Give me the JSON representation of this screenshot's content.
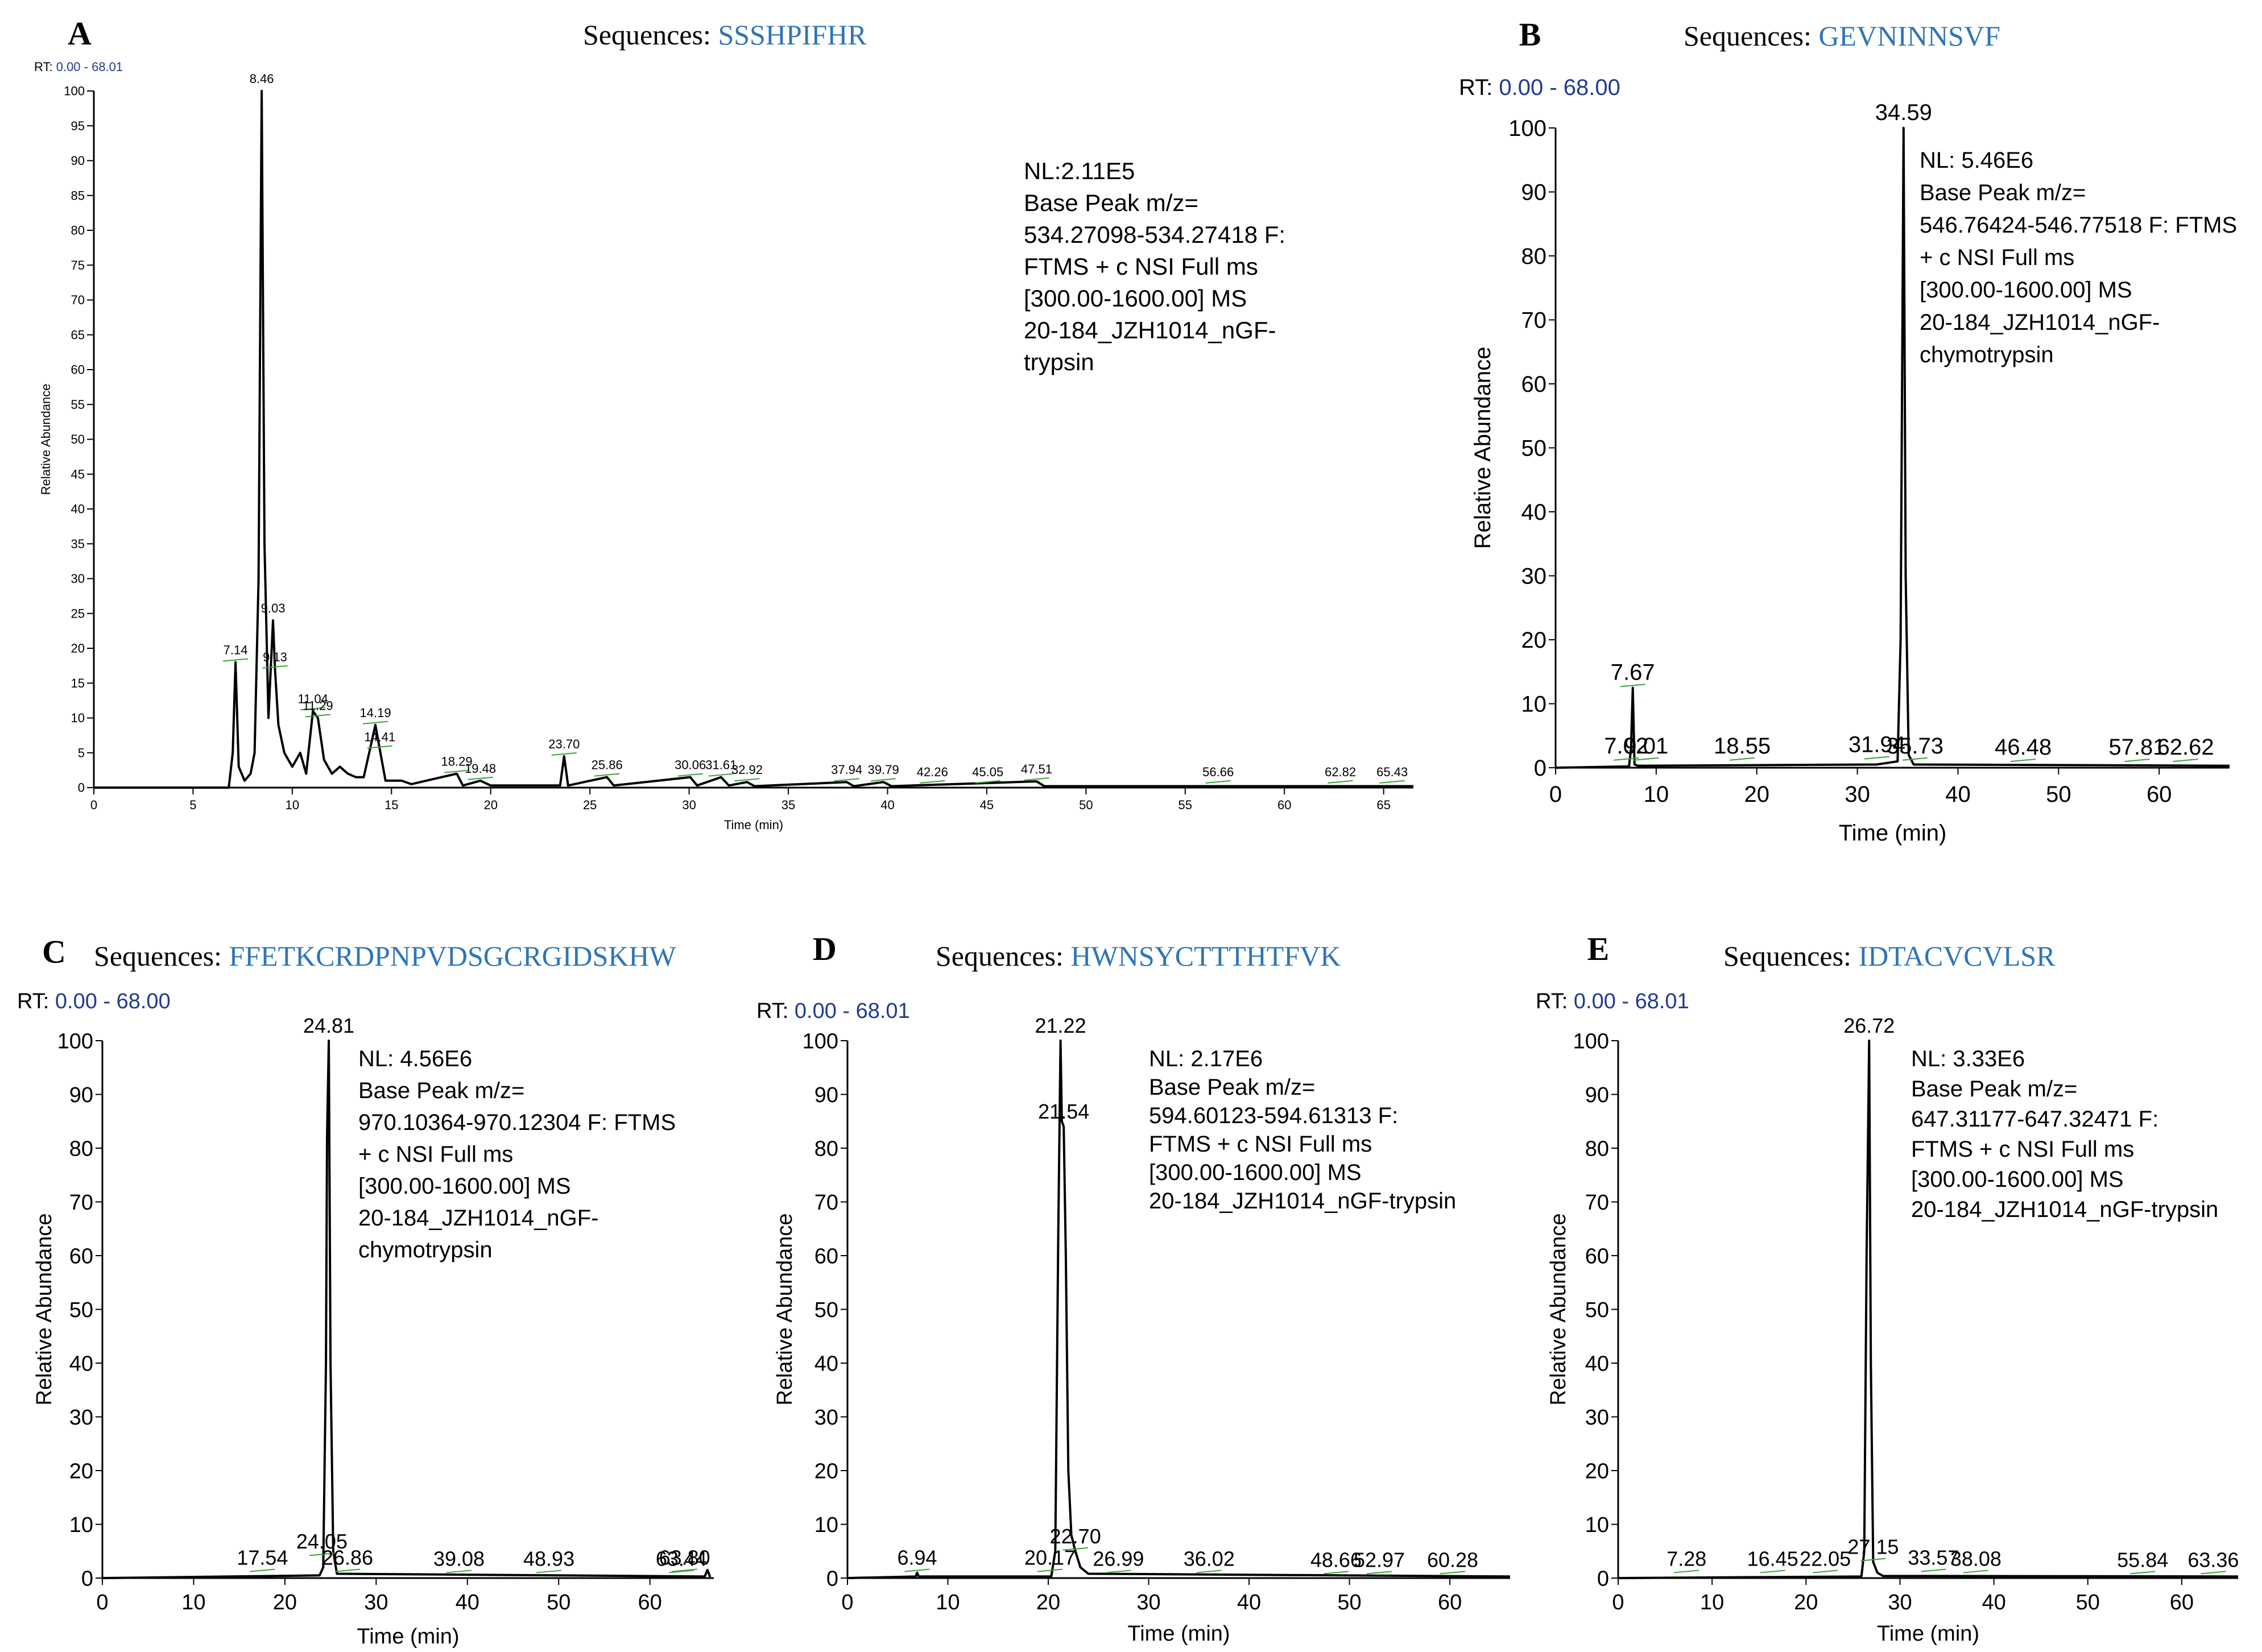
{
  "figure": {
    "seq_prefix": "Sequences:",
    "axis_xlabel": "Time (min)",
    "axis_ylabel": "Relative Abundance"
  },
  "colors": {
    "trace": "#000000",
    "sequence": "#2e75b6",
    "rt": "#1f3a93",
    "baseline": "#3aa335"
  },
  "chart_data": [
    {
      "type": "line",
      "panel": "A",
      "sequence": "SSSHPIFHR",
      "rt_label": "RT:",
      "rt_range": "0.00 - 68.01",
      "info": [
        "NL:2.11E5",
        "Base Peak m/z=",
        "534.27098-534.27418 F:",
        "FTMS + c NSI Full ms",
        "[300.00-1600.00] MS",
        "20-184_JZH1014_nGF-",
        "trypsin"
      ],
      "xlabel": "Time (min)",
      "ylabel": "Relative Abundance",
      "xlim": [
        0,
        66.5
      ],
      "ylim": [
        0,
        100
      ],
      "xticks": [
        0,
        5,
        10,
        15,
        20,
        25,
        30,
        35,
        40,
        45,
        50,
        55,
        60,
        65
      ],
      "yticks": [
        0,
        5,
        10,
        15,
        20,
        25,
        30,
        35,
        40,
        45,
        50,
        55,
        60,
        65,
        70,
        75,
        80,
        85,
        90,
        95,
        100
      ],
      "peaks": [
        {
          "label": "8.46",
          "x": 8.46,
          "y": 100
        },
        {
          "label": "7.14",
          "x": 7.14,
          "y": 18
        },
        {
          "label": "9.03",
          "x": 9.03,
          "y": 24
        },
        {
          "label": "9.13",
          "x": 9.13,
          "y": 17
        },
        {
          "label": "11.04",
          "x": 11.04,
          "y": 11
        },
        {
          "label": "11.29",
          "x": 11.29,
          "y": 10
        },
        {
          "label": "14.19",
          "x": 14.19,
          "y": 9
        },
        {
          "label": "14.41",
          "x": 14.41,
          "y": 5.5
        },
        {
          "label": "18.29",
          "x": 18.29,
          "y": 2
        },
        {
          "label": "19.48",
          "x": 19.48,
          "y": 1
        },
        {
          "label": "23.70",
          "x": 23.7,
          "y": 4.5
        },
        {
          "label": "25.86",
          "x": 25.86,
          "y": 1.5
        },
        {
          "label": "30.06",
          "x": 30.06,
          "y": 1.5
        },
        {
          "label": "31.61",
          "x": 31.61,
          "y": 1.5
        },
        {
          "label": "32.92",
          "x": 32.92,
          "y": 0.8
        },
        {
          "label": "37.94",
          "x": 37.94,
          "y": 0.8
        },
        {
          "label": "39.79",
          "x": 39.79,
          "y": 0.8
        },
        {
          "label": "42.26",
          "x": 42.26,
          "y": 0.5
        },
        {
          "label": "45.05",
          "x": 45.05,
          "y": 0.5
        },
        {
          "label": "47.51",
          "x": 47.51,
          "y": 0.9
        },
        {
          "label": "56.66",
          "x": 56.66,
          "y": 0.5
        },
        {
          "label": "62.82",
          "x": 62.82,
          "y": 0.5
        },
        {
          "label": "65.43",
          "x": 65.43,
          "y": 0.5
        }
      ],
      "trace": [
        [
          0,
          0
        ],
        [
          5,
          0
        ],
        [
          6.8,
          0
        ],
        [
          7.0,
          5
        ],
        [
          7.14,
          18
        ],
        [
          7.3,
          3
        ],
        [
          7.6,
          1
        ],
        [
          7.9,
          2
        ],
        [
          8.1,
          5
        ],
        [
          8.3,
          30
        ],
        [
          8.46,
          100
        ],
        [
          8.6,
          35
        ],
        [
          8.8,
          10
        ],
        [
          9.03,
          24
        ],
        [
          9.13,
          17
        ],
        [
          9.3,
          9
        ],
        [
          9.6,
          5
        ],
        [
          10.0,
          3
        ],
        [
          10.4,
          5
        ],
        [
          10.7,
          2
        ],
        [
          11.04,
          11
        ],
        [
          11.29,
          10
        ],
        [
          11.6,
          4
        ],
        [
          12.0,
          2
        ],
        [
          12.4,
          3
        ],
        [
          12.8,
          2
        ],
        [
          13.2,
          1.5
        ],
        [
          13.6,
          1.5
        ],
        [
          14.19,
          9
        ],
        [
          14.41,
          5.5
        ],
        [
          14.7,
          1
        ],
        [
          15.5,
          1
        ],
        [
          16.0,
          0.5
        ],
        [
          18.29,
          2
        ],
        [
          18.6,
          0.3
        ],
        [
          19.48,
          1
        ],
        [
          20,
          0.3
        ],
        [
          23.5,
          0.3
        ],
        [
          23.7,
          4.5
        ],
        [
          23.9,
          0.3
        ],
        [
          25.86,
          1.5
        ],
        [
          26.2,
          0.3
        ],
        [
          30.06,
          1.5
        ],
        [
          30.4,
          0.3
        ],
        [
          31.61,
          1.5
        ],
        [
          32,
          0.3
        ],
        [
          32.92,
          0.8
        ],
        [
          33.3,
          0.2
        ],
        [
          37.94,
          0.8
        ],
        [
          38.3,
          0.2
        ],
        [
          39.79,
          0.8
        ],
        [
          40.2,
          0.2
        ],
        [
          47.51,
          0.9
        ],
        [
          47.9,
          0.2
        ],
        [
          66.5,
          0.2
        ]
      ]
    },
    {
      "type": "line",
      "panel": "B",
      "sequence": "GEVNINNSVF",
      "rt_label": "RT:",
      "rt_range": "0.00 - 68.00",
      "info": [
        "NL: 5.46E6",
        "Base Peak m/z=",
        "546.76424-546.77518 F: FTMS",
        "+ c NSI Full ms",
        "[300.00-1600.00]  MS",
        "20-184_JZH1014_nGF-",
        "chymotrypsin"
      ],
      "xlabel": "Time (min)",
      "ylabel": "Relative Abundance",
      "xlim": [
        0,
        67
      ],
      "ylim": [
        0,
        100
      ],
      "xticks": [
        0,
        10,
        20,
        30,
        40,
        50,
        60
      ],
      "yticks": [
        0,
        10,
        20,
        30,
        40,
        50,
        60,
        70,
        80,
        90,
        100
      ],
      "peaks": [
        {
          "label": "34.59",
          "x": 34.59,
          "y": 100
        },
        {
          "label": "7.67",
          "x": 7.67,
          "y": 12.5
        },
        {
          "label": "7.02",
          "x": 7.02,
          "y": 1
        },
        {
          "label": "9.01",
          "x": 9.01,
          "y": 1
        },
        {
          "label": "18.55",
          "x": 18.55,
          "y": 1
        },
        {
          "label": "31.94",
          "x": 31.94,
          "y": 1.2
        },
        {
          "label": "35.73",
          "x": 35.73,
          "y": 1
        },
        {
          "label": "46.48",
          "x": 46.48,
          "y": 0.8
        },
        {
          "label": "57.81",
          "x": 57.81,
          "y": 0.8
        },
        {
          "label": "62.62",
          "x": 62.62,
          "y": 0.8
        }
      ],
      "trace": [
        [
          0,
          0
        ],
        [
          7.3,
          0.2
        ],
        [
          7.5,
          3
        ],
        [
          7.67,
          12.5
        ],
        [
          7.85,
          0.5
        ],
        [
          8.2,
          0.3
        ],
        [
          31.9,
          0.5
        ],
        [
          34.0,
          1
        ],
        [
          34.3,
          20
        ],
        [
          34.59,
          100
        ],
        [
          34.8,
          30
        ],
        [
          35.1,
          2
        ],
        [
          35.6,
          0.5
        ],
        [
          67,
          0.3
        ]
      ]
    },
    {
      "type": "line",
      "panel": "C",
      "sequence": "FFETKCRDPNPVDSGCRGIDSKHW",
      "rt_label": "RT:",
      "rt_range": "0.00 - 68.00",
      "info": [
        "NL: 4.56E6",
        "Base Peak m/z=",
        "970.10364-970.12304 F: FTMS",
        "+ c NSI Full ms",
        "[300.00-1600.00]  MS",
        "20-184_JZH1014_nGF-",
        "chymotrypsin"
      ],
      "xlabel": "Time (min)",
      "ylabel": "Relative Abundance",
      "xlim": [
        0,
        67
      ],
      "ylim": [
        0,
        100
      ],
      "xticks": [
        0,
        10,
        20,
        30,
        40,
        50,
        60
      ],
      "yticks": [
        0,
        10,
        20,
        30,
        40,
        50,
        60,
        70,
        80,
        90,
        100
      ],
      "peaks": [
        {
          "label": "24.81",
          "x": 24.81,
          "y": 100
        },
        {
          "label": "17.54",
          "x": 17.54,
          "y": 1
        },
        {
          "label": "24.05",
          "x": 24.05,
          "y": 4
        },
        {
          "label": "26.86",
          "x": 26.86,
          "y": 1
        },
        {
          "label": "39.08",
          "x": 39.08,
          "y": 0.8
        },
        {
          "label": "48.93",
          "x": 48.93,
          "y": 0.8
        },
        {
          "label": "63.44",
          "x": 63.44,
          "y": 0.8
        },
        {
          "label": "63.80",
          "x": 63.8,
          "y": 1
        }
      ],
      "trace": [
        [
          0,
          0
        ],
        [
          23.8,
          0.5
        ],
        [
          24.2,
          2
        ],
        [
          24.5,
          40
        ],
        [
          24.62,
          82
        ],
        [
          24.81,
          100
        ],
        [
          25.0,
          40
        ],
        [
          25.3,
          5
        ],
        [
          25.7,
          0.8
        ],
        [
          66,
          0.3
        ],
        [
          66.3,
          1.5
        ],
        [
          66.6,
          0.2
        ]
      ]
    },
    {
      "type": "line",
      "panel": "D",
      "sequence": "HWNSYCTTTHTFVK",
      "rt_label": "RT:",
      "rt_range": "0.00 - 68.01",
      "info": [
        "NL: 2.17E6",
        "Base Peak m/z=",
        "594.60123-594.61313 F:",
        "FTMS + c NSI Full ms",
        "[300.00-1600.00]  MS",
        "20-184_JZH1014_nGF-trypsin"
      ],
      "xlabel": "Time (min)",
      "ylabel": "Relative Abundance",
      "xlim": [
        0,
        66
      ],
      "ylim": [
        0,
        100
      ],
      "xticks": [
        0,
        10,
        20,
        30,
        40,
        50,
        60
      ],
      "yticks": [
        0,
        10,
        20,
        30,
        40,
        50,
        60,
        70,
        80,
        90,
        100
      ],
      "peaks": [
        {
          "label": "21.22",
          "x": 21.22,
          "y": 100
        },
        {
          "label": "21.54",
          "x": 21.54,
          "y": 84
        },
        {
          "label": "22.70",
          "x": 22.7,
          "y": 5
        },
        {
          "label": "6.94",
          "x": 6.94,
          "y": 1
        },
        {
          "label": "20.17",
          "x": 20.17,
          "y": 1
        },
        {
          "label": "26.99",
          "x": 26.99,
          "y": 0.8
        },
        {
          "label": "36.02",
          "x": 36.02,
          "y": 0.8
        },
        {
          "label": "48.66",
          "x": 48.66,
          "y": 0.6
        },
        {
          "label": "52.97",
          "x": 52.97,
          "y": 0.6
        },
        {
          "label": "60.28",
          "x": 60.28,
          "y": 0.6
        }
      ],
      "trace": [
        [
          0,
          0
        ],
        [
          6.8,
          0.3
        ],
        [
          6.94,
          1
        ],
        [
          7.1,
          0.3
        ],
        [
          20.3,
          0.3
        ],
        [
          20.7,
          5
        ],
        [
          21.0,
          65
        ],
        [
          21.22,
          100
        ],
        [
          21.35,
          85
        ],
        [
          21.54,
          84
        ],
        [
          21.75,
          60
        ],
        [
          22.0,
          20
        ],
        [
          22.3,
          8
        ],
        [
          22.7,
          5
        ],
        [
          23.2,
          2
        ],
        [
          24,
          0.8
        ],
        [
          66,
          0.3
        ]
      ]
    },
    {
      "type": "line",
      "panel": "E",
      "sequence": "IDTACVCVLSR",
      "rt_label": "RT:",
      "rt_range": "0.00 - 68.01",
      "info": [
        "NL: 3.33E6",
        "Base Peak m/z=",
        "647.31177-647.32471 F:",
        "FTMS + c NSI Full ms",
        "[300.00-1600.00]  MS",
        "20-184_JZH1014_nGF-trypsin"
      ],
      "xlabel": "Time (min)",
      "ylabel": "Relative Abundance",
      "xlim": [
        0,
        66
      ],
      "ylim": [
        0,
        100
      ],
      "xticks": [
        0,
        10,
        20,
        30,
        40,
        50,
        60
      ],
      "yticks": [
        0,
        10,
        20,
        30,
        40,
        50,
        60,
        70,
        80,
        90,
        100
      ],
      "peaks": [
        {
          "label": "26.72",
          "x": 26.72,
          "y": 100
        },
        {
          "label": "7.28",
          "x": 7.28,
          "y": 0.8
        },
        {
          "label": "16.45",
          "x": 16.45,
          "y": 0.8
        },
        {
          "label": "22.05",
          "x": 22.05,
          "y": 0.8
        },
        {
          "label": "27.15",
          "x": 27.15,
          "y": 3
        },
        {
          "label": "33.57",
          "x": 33.57,
          "y": 1
        },
        {
          "label": "38.08",
          "x": 38.08,
          "y": 0.8
        },
        {
          "label": "55.84",
          "x": 55.84,
          "y": 0.6
        },
        {
          "label": "63.36",
          "x": 63.36,
          "y": 0.6
        }
      ],
      "trace": [
        [
          0,
          0
        ],
        [
          25.9,
          0.3
        ],
        [
          26.2,
          5
        ],
        [
          26.45,
          60
        ],
        [
          26.72,
          100
        ],
        [
          26.9,
          40
        ],
        [
          27.15,
          3
        ],
        [
          27.6,
          1
        ],
        [
          28.2,
          0.4
        ],
        [
          66,
          0.3
        ]
      ]
    }
  ]
}
